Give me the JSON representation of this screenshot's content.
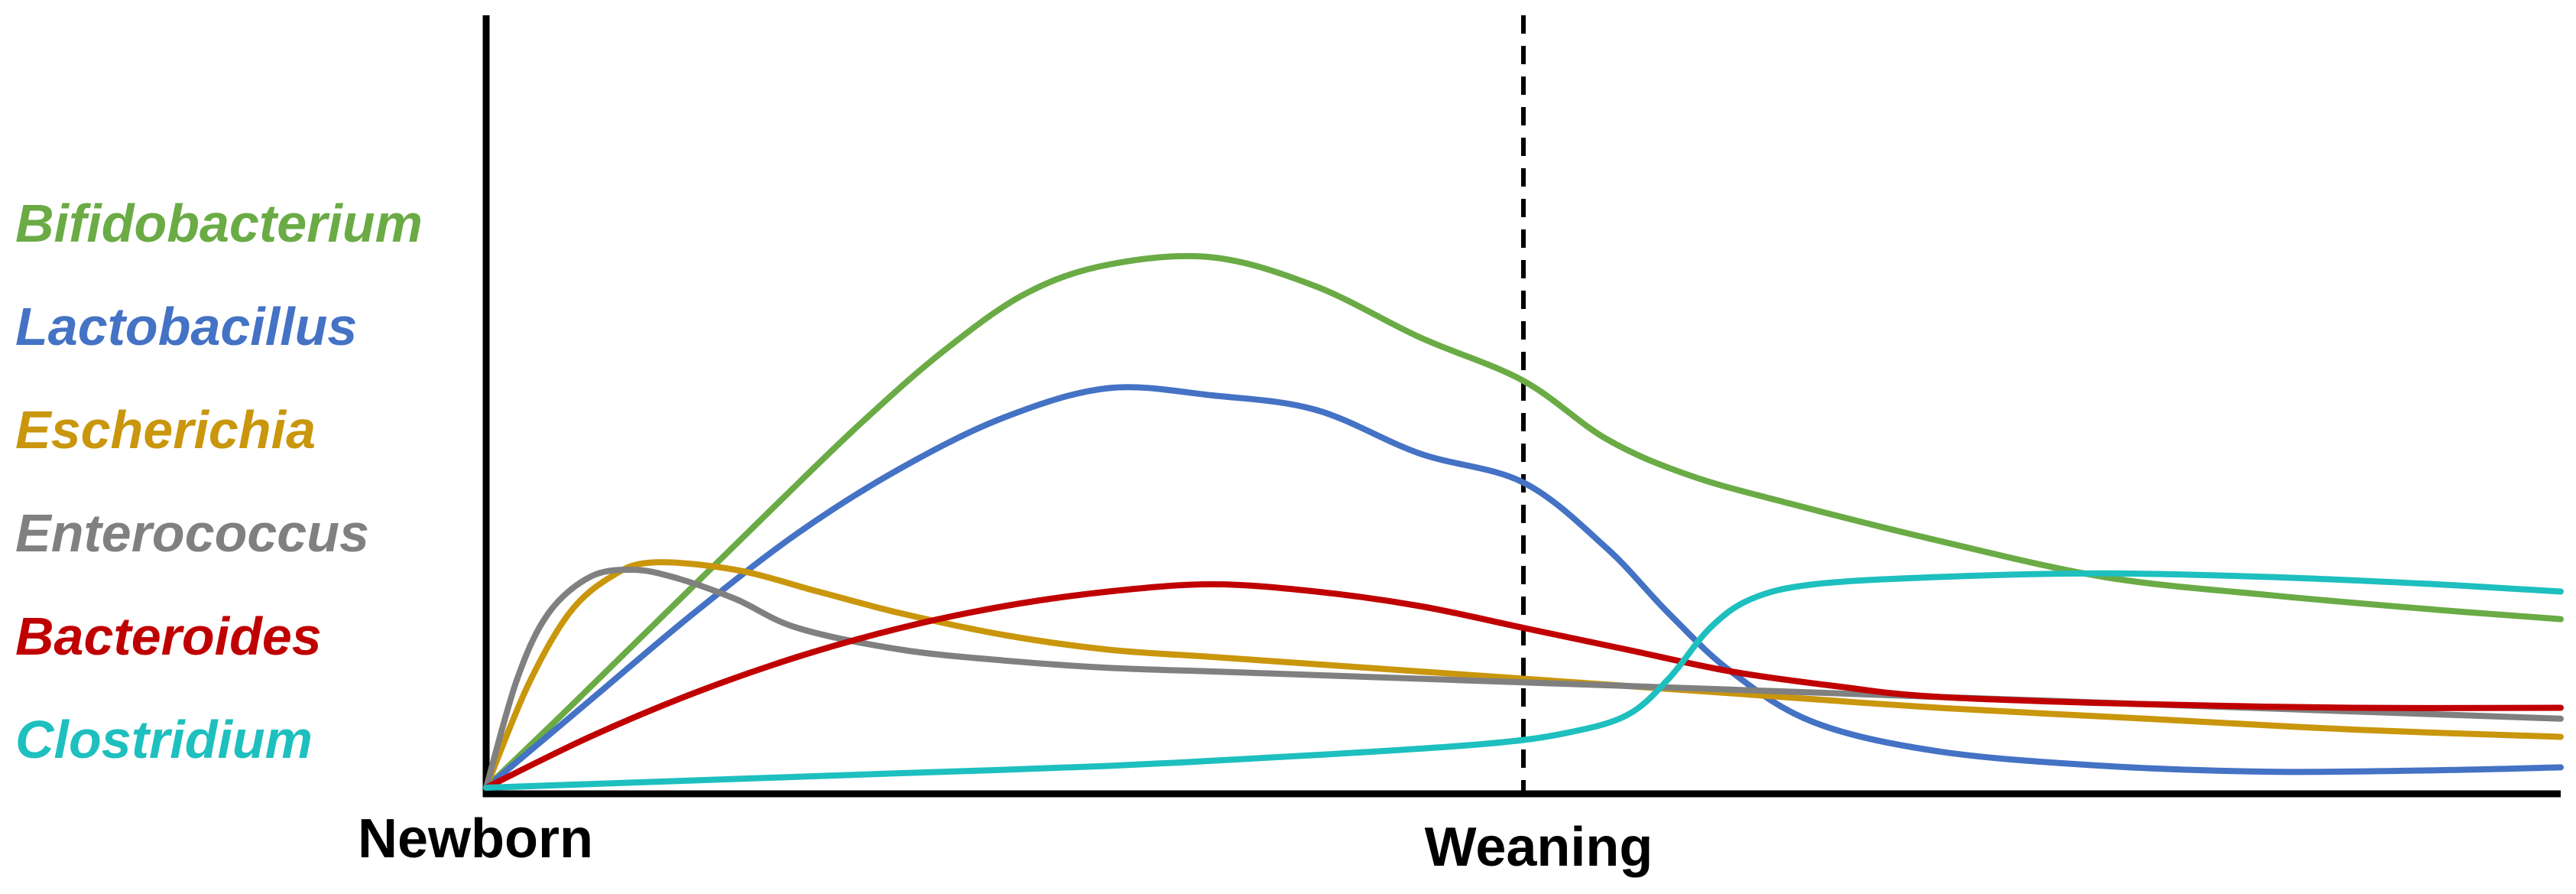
{
  "chart_data": {
    "type": "line",
    "title": "",
    "xlabel": "",
    "ylabel": "",
    "xlim": [
      0,
      100
    ],
    "ylim": [
      0,
      100
    ],
    "grid": false,
    "legend_position": "left",
    "x_ticks": [
      {
        "label": "Newborn",
        "x": 0
      },
      {
        "label": "Weaning",
        "x": 50
      }
    ],
    "reference_line": {
      "x": 50,
      "style": "dashed"
    },
    "series": [
      {
        "name": "Bifidobacterium",
        "color": "#6AAB45",
        "points": [
          [
            0,
            0
          ],
          [
            4,
            11
          ],
          [
            9,
            25
          ],
          [
            14,
            39
          ],
          [
            18,
            50
          ],
          [
            22,
            60
          ],
          [
            26,
            68
          ],
          [
            30,
            72
          ],
          [
            35,
            73
          ],
          [
            40,
            69
          ],
          [
            45,
            62
          ],
          [
            50,
            56
          ],
          [
            54,
            48
          ],
          [
            58,
            43
          ],
          [
            63,
            39
          ],
          [
            70,
            34
          ],
          [
            78,
            29
          ],
          [
            86,
            26.5
          ],
          [
            94,
            24.5
          ],
          [
            100,
            23.2
          ]
        ]
      },
      {
        "name": "Lactobacillus",
        "color": "#4472C4",
        "points": [
          [
            0,
            0
          ],
          [
            5,
            12
          ],
          [
            10,
            24
          ],
          [
            15,
            35
          ],
          [
            20,
            44
          ],
          [
            25,
            51
          ],
          [
            30,
            55
          ],
          [
            35,
            54
          ],
          [
            40,
            52
          ],
          [
            45,
            46
          ],
          [
            50,
            42
          ],
          [
            54,
            33
          ],
          [
            57,
            24
          ],
          [
            60,
            16
          ],
          [
            64,
            9
          ],
          [
            70,
            5
          ],
          [
            78,
            3
          ],
          [
            86,
            2.2
          ],
          [
            94,
            2.4
          ],
          [
            100,
            2.8
          ]
        ]
      },
      {
        "name": "Escherichia",
        "color": "#C9960C",
        "points": [
          [
            0,
            0
          ],
          [
            2,
            14
          ],
          [
            4,
            24
          ],
          [
            6,
            29
          ],
          [
            8,
            31
          ],
          [
            12,
            30
          ],
          [
            16,
            27
          ],
          [
            20,
            24
          ],
          [
            25,
            21
          ],
          [
            30,
            19
          ],
          [
            35,
            18
          ],
          [
            40,
            17
          ],
          [
            45,
            16
          ],
          [
            50,
            15
          ],
          [
            55,
            14
          ],
          [
            60,
            13
          ],
          [
            70,
            11
          ],
          [
            80,
            9.5
          ],
          [
            90,
            8
          ],
          [
            100,
            7
          ]
        ]
      },
      {
        "name": "Enterococcus",
        "color": "#808080",
        "points": [
          [
            0,
            0
          ],
          [
            1.5,
            15
          ],
          [
            3,
            24
          ],
          [
            5,
            29
          ],
          [
            7,
            30
          ],
          [
            9,
            29
          ],
          [
            12,
            26
          ],
          [
            15,
            22
          ],
          [
            20,
            19
          ],
          [
            25,
            17.5
          ],
          [
            30,
            16.5
          ],
          [
            35,
            16
          ],
          [
            40,
            15.5
          ],
          [
            50,
            14.5
          ],
          [
            60,
            13.5
          ],
          [
            70,
            12.5
          ],
          [
            80,
            11.5
          ],
          [
            90,
            10.5
          ],
          [
            100,
            9.5
          ]
        ]
      },
      {
        "name": "Bacteroides",
        "color": "#C00000",
        "points": [
          [
            0,
            0
          ],
          [
            5,
            7
          ],
          [
            10,
            13
          ],
          [
            15,
            18
          ],
          [
            20,
            22
          ],
          [
            25,
            25
          ],
          [
            30,
            27
          ],
          [
            35,
            28
          ],
          [
            40,
            27
          ],
          [
            45,
            25
          ],
          [
            50,
            22
          ],
          [
            55,
            19
          ],
          [
            60,
            16
          ],
          [
            65,
            14
          ],
          [
            70,
            12.5
          ],
          [
            80,
            11.5
          ],
          [
            90,
            11
          ],
          [
            100,
            11
          ]
        ]
      },
      {
        "name": "Clostridium",
        "color": "#1EBFBF",
        "points": [
          [
            0,
            0
          ],
          [
            10,
            1
          ],
          [
            20,
            2
          ],
          [
            30,
            3
          ],
          [
            40,
            4.5
          ],
          [
            48,
            6
          ],
          [
            52,
            7.5
          ],
          [
            55,
            10
          ],
          [
            57,
            15
          ],
          [
            59,
            22
          ],
          [
            61,
            26
          ],
          [
            64,
            28
          ],
          [
            70,
            29
          ],
          [
            78,
            29.5
          ],
          [
            86,
            29
          ],
          [
            94,
            28
          ],
          [
            100,
            27
          ]
        ]
      }
    ]
  }
}
